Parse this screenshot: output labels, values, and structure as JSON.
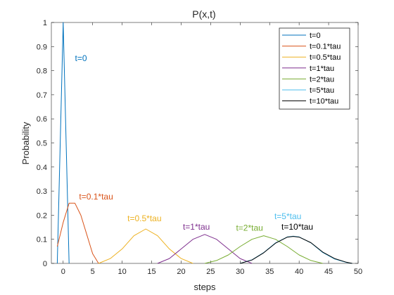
{
  "chart_data": {
    "type": "line",
    "title": "P(x,t)",
    "xlabel": "steps",
    "ylabel": "Probability",
    "xlim": [
      -2,
      50
    ],
    "ylim": [
      0,
      1
    ],
    "xticks": [
      0,
      5,
      10,
      15,
      20,
      25,
      30,
      35,
      40,
      45,
      50
    ],
    "yticks": [
      0,
      0.1,
      0.2,
      0.3,
      0.4,
      0.5,
      0.6,
      0.7,
      0.8,
      0.9,
      1
    ],
    "xtick_labels": [
      "0",
      "5",
      "10",
      "15",
      "20",
      "25",
      "30",
      "35",
      "40",
      "45",
      "50"
    ],
    "ytick_labels": [
      "0",
      "0.1",
      "0.2",
      "0.3",
      "0.4",
      "0.5",
      "0.6",
      "0.7",
      "0.8",
      "0.9",
      "1"
    ],
    "legend_position": "top-right",
    "grid": false,
    "series": [
      {
        "name": "t=0",
        "color": "#0072BD",
        "x": [
          -1,
          0,
          1
        ],
        "y": [
          0,
          1,
          0
        ]
      },
      {
        "name": "t=0.1*tau",
        "color": "#D95319",
        "x": [
          -1,
          0,
          1,
          2,
          3,
          4,
          5,
          6
        ],
        "y": [
          0.07,
          0.17,
          0.25,
          0.25,
          0.2,
          0.12,
          0.04,
          0
        ]
      },
      {
        "name": "t=0.5*tau",
        "color": "#EDB120",
        "x": [
          6,
          8,
          10,
          12,
          14,
          16,
          18,
          20,
          22
        ],
        "y": [
          0,
          0.02,
          0.06,
          0.115,
          0.143,
          0.115,
          0.06,
          0.02,
          0
        ]
      },
      {
        "name": "t=1*tau",
        "color": "#7E2F8E",
        "x": [
          16,
          18,
          20,
          22,
          24,
          26,
          28,
          30,
          32
        ],
        "y": [
          0,
          0.02,
          0.06,
          0.1,
          0.12,
          0.1,
          0.06,
          0.02,
          0
        ]
      },
      {
        "name": "t=2*tau",
        "color": "#77AC30",
        "x": [
          24,
          26,
          28,
          30,
          32,
          34,
          36,
          38,
          40,
          42,
          44
        ],
        "y": [
          0,
          0.012,
          0.035,
          0.07,
          0.1,
          0.115,
          0.1,
          0.07,
          0.035,
          0.012,
          0
        ]
      },
      {
        "name": "t=5*tau",
        "color": "#4DBEEE",
        "x": [
          30,
          32,
          34,
          36,
          38,
          39,
          40,
          42,
          44,
          46,
          48,
          49
        ],
        "y": [
          0,
          0.015,
          0.045,
          0.085,
          0.11,
          0.113,
          0.11,
          0.085,
          0.045,
          0.018,
          0.004,
          0
        ]
      },
      {
        "name": "t=10*tau",
        "color": "#000000",
        "x": [
          30,
          32,
          34,
          36,
          38,
          39,
          40,
          42,
          44,
          46,
          48,
          49
        ],
        "y": [
          0,
          0.014,
          0.044,
          0.084,
          0.109,
          0.112,
          0.109,
          0.086,
          0.047,
          0.02,
          0.005,
          0
        ]
      }
    ],
    "annotations": [
      {
        "text": "t=0",
        "x": 2,
        "y": 0.84,
        "color": "#0072BD"
      },
      {
        "text": "t=0.1*tau",
        "x": 2.7,
        "y": 0.265,
        "color": "#D95319"
      },
      {
        "text": "t=0.5*tau",
        "x": 10.9,
        "y": 0.175,
        "color": "#EDB120"
      },
      {
        "text": "t=1*tau",
        "x": 20.3,
        "y": 0.14,
        "color": "#7E2F8E"
      },
      {
        "text": "t=2*tau",
        "x": 29.3,
        "y": 0.135,
        "color": "#77AC30"
      },
      {
        "text": "t=5*tau",
        "x": 35.8,
        "y": 0.183,
        "color": "#4DBEEE"
      },
      {
        "text": "t=10*tau",
        "x": 37,
        "y": 0.14,
        "color": "#000000"
      }
    ]
  }
}
